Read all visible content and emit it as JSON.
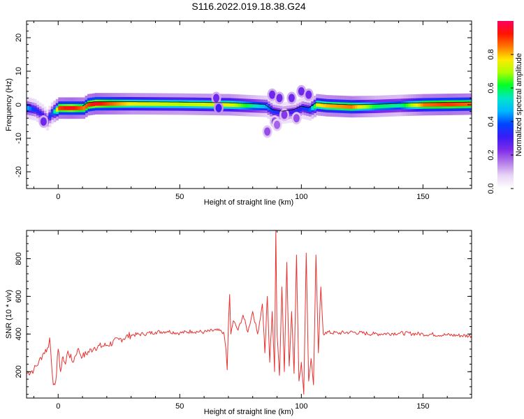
{
  "title": "S116.2022.019.18.38.G24",
  "chart_data": [
    {
      "type": "heatmap",
      "xlabel": "Height of straight line (km)",
      "ylabel": "Frequency (Hz)",
      "xlim": [
        -13,
        170
      ],
      "ylim": [
        -25,
        25
      ],
      "xticks": [
        0,
        50,
        100,
        150
      ],
      "yticks": [
        -20,
        -10,
        0,
        10,
        20
      ],
      "grid": false,
      "colorbar": {
        "label": "Normalized spectral amplitude",
        "range": [
          0,
          1
        ],
        "ticks": [
          "0.0",
          "0.2",
          "0.4",
          "0.6",
          "0.8"
        ],
        "colormap": [
          "#ffffff",
          "#e9d6f6",
          "#b57ee8",
          "#7f2bea",
          "#3a1cf6",
          "#0044ff",
          "#00b7ff",
          "#00e6c8",
          "#00ff28",
          "#aaff00",
          "#ffea00",
          "#ff7800",
          "#ff1400",
          "#ff0060"
        ]
      },
      "ridge": {
        "x": [
          -13,
          -10,
          -7,
          -5,
          -3,
          0,
          5,
          10,
          12,
          15,
          30,
          50,
          70,
          85,
          88,
          92,
          97,
          100,
          103,
          106,
          110,
          120,
          130,
          140,
          150,
          160,
          170
        ],
        "freq": [
          -1,
          -1.5,
          -3,
          -4.5,
          -2.5,
          -1,
          -1,
          -1,
          0,
          0.3,
          0.3,
          0.2,
          0,
          -0.5,
          -2,
          -2.5,
          -2,
          -1,
          -1.5,
          0,
          -0.3,
          -0.6,
          -0.5,
          -0.2,
          0,
          0.1,
          0.2
        ],
        "amplitude": [
          0.45,
          0.35,
          0.3,
          0.3,
          0.4,
          0.9,
          0.95,
          0.85,
          0.9,
          0.95,
          0.75,
          0.7,
          0.75,
          0.45,
          0.35,
          0.3,
          0.3,
          0.35,
          0.4,
          0.75,
          0.8,
          0.85,
          0.6,
          0.55,
          0.85,
          0.9,
          0.85
        ]
      },
      "blobs": [
        {
          "x": 65,
          "freq": 2,
          "amplitude": 0.25
        },
        {
          "x": 66,
          "freq": -1,
          "amplitude": 0.3
        },
        {
          "x": 88,
          "freq": 3,
          "amplitude": 0.25
        },
        {
          "x": 91,
          "freq": 2,
          "amplitude": 0.25
        },
        {
          "x": 96,
          "freq": 2,
          "amplitude": 0.25
        },
        {
          "x": 100,
          "freq": 4,
          "amplitude": 0.25
        },
        {
          "x": 103,
          "freq": 3,
          "amplitude": 0.25
        },
        {
          "x": 93,
          "freq": -3,
          "amplitude": 0.22
        },
        {
          "x": 98,
          "freq": -4,
          "amplitude": 0.2
        },
        {
          "x": 89,
          "freq": -5,
          "amplitude": 0.2
        },
        {
          "x": 86,
          "freq": -8,
          "amplitude": 0.2
        },
        {
          "x": 90,
          "freq": -6,
          "amplitude": 0.18
        },
        {
          "x": -6,
          "freq": -5,
          "amplitude": 0.25
        }
      ]
    },
    {
      "type": "line",
      "xlabel": "Height of straight line (km)",
      "ylabel": "SNR (10 * v/v)",
      "xlim": [
        -13,
        170
      ],
      "ylim": [
        60,
        950
      ],
      "xticks": [
        0,
        50,
        100,
        150
      ],
      "yticks": [
        200,
        400,
        600,
        800
      ],
      "grid": false,
      "series": [
        {
          "color": "#e8312f",
          "x": [
            -13,
            -10,
            -8,
            -6,
            -4,
            -3.5,
            -3,
            -2.5,
            -2,
            -1,
            0,
            1,
            2,
            3,
            4,
            6,
            8,
            10,
            15,
            20,
            25,
            30,
            35,
            40,
            45,
            50,
            55,
            60,
            65,
            68,
            69,
            69.5,
            70,
            70.5,
            71,
            72,
            74,
            76,
            78,
            80,
            82,
            84,
            85,
            86,
            87,
            88,
            89,
            89.5,
            90,
            91,
            92,
            93,
            94,
            95,
            96,
            97,
            98,
            99,
            100,
            101,
            102,
            103,
            104,
            105,
            106,
            107,
            108,
            109,
            110,
            115,
            120,
            130,
            140,
            150,
            160,
            170
          ],
          "y": [
            190,
            210,
            250,
            300,
            330,
            380,
            300,
            200,
            130,
            150,
            320,
            200,
            280,
            240,
            310,
            250,
            320,
            280,
            330,
            340,
            370,
            395,
            400,
            410,
            415,
            405,
            415,
            410,
            420,
            410,
            320,
            210,
            450,
            610,
            400,
            470,
            420,
            500,
            410,
            520,
            400,
            560,
            300,
            600,
            250,
            520,
            200,
            950,
            400,
            180,
            650,
            200,
            780,
            230,
            520,
            190,
            820,
            150,
            250,
            80,
            830,
            150,
            270,
            130,
            820,
            300,
            650,
            400,
            410,
            405,
            410,
            400,
            405,
            400,
            395,
            390
          ]
        }
      ]
    }
  ]
}
